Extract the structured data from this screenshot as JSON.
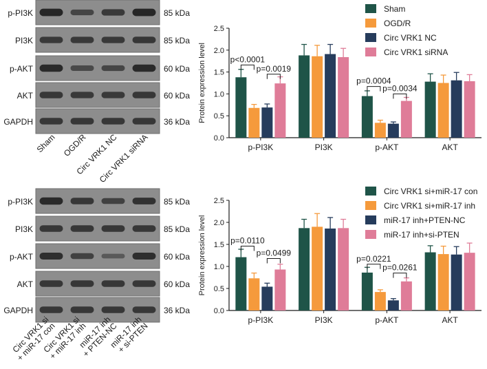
{
  "panels": [
    {
      "blot": {
        "rows": [
          {
            "name": "p-PI3K",
            "size": "85 kDa",
            "intensity": [
              0.95,
              0.55,
              0.7,
              0.95
            ]
          },
          {
            "name": "PI3K",
            "size": "85 kDa",
            "intensity": [
              0.7,
              0.7,
              0.7,
              0.75
            ]
          },
          {
            "name": "p-AKT",
            "size": "60 kDa",
            "intensity": [
              0.9,
              0.5,
              0.55,
              0.9
            ]
          },
          {
            "name": "AKT",
            "size": "60 kDa",
            "intensity": [
              0.75,
              0.7,
              0.7,
              0.75
            ]
          },
          {
            "name": "GAPDH",
            "size": "36 kDa",
            "intensity": [
              0.75,
              0.75,
              0.75,
              0.75
            ]
          }
        ],
        "lane_labels": [
          [
            "Sham"
          ],
          [
            "OGD/R"
          ],
          [
            "Circ VRK1 NC"
          ],
          [
            "Circ VRK1 siRNA"
          ]
        ]
      },
      "chart_data": {
        "type": "bar",
        "ylabel": "Protein expression level",
        "ylim": [
          0,
          2.5
        ],
        "yticks": [
          "0.0",
          "0.5",
          "1.0",
          "1.5",
          "2.0",
          "2.5"
        ],
        "categories": [
          "p-PI3K",
          "PI3K",
          "p-AKT",
          "AKT"
        ],
        "series": [
          {
            "name": "Sham",
            "color": "#1f5448",
            "values": [
              1.38,
              1.88,
              0.95,
              1.28
            ],
            "errors": [
              0.18,
              0.25,
              0.12,
              0.18
            ]
          },
          {
            "name": "OGD/R",
            "color": "#f59a3c",
            "values": [
              0.68,
              1.86,
              0.34,
              1.25
            ],
            "errors": [
              0.08,
              0.25,
              0.06,
              0.18
            ]
          },
          {
            "name": "Circ VRK1 NC",
            "color": "#263c5c",
            "values": [
              0.69,
              1.91,
              0.32,
              1.31
            ],
            "errors": [
              0.08,
              0.22,
              0.04,
              0.18
            ]
          },
          {
            "name": "Circ VRK1 siRNA",
            "color": "#df7c98",
            "values": [
              1.24,
              1.84,
              0.84,
              1.29
            ],
            "errors": [
              0.15,
              0.2,
              0.08,
              0.15
            ]
          }
        ],
        "significance": [
          {
            "category": 0,
            "from": 0,
            "to": 1,
            "label": "p<0.0001",
            "y": 1.66
          },
          {
            "category": 0,
            "from": 2,
            "to": 3,
            "label": "p=0.0019",
            "y": 1.45
          },
          {
            "category": 2,
            "from": 0,
            "to": 1,
            "label": "p=0.0004",
            "y": 1.17
          },
          {
            "category": 2,
            "from": 2,
            "to": 3,
            "label": "p=0.0034",
            "y": 1.0
          }
        ]
      }
    },
    {
      "blot": {
        "rows": [
          {
            "name": "p-PI3K",
            "size": "85 kDa",
            "intensity": [
              0.9,
              0.75,
              0.6,
              0.8
            ]
          },
          {
            "name": "PI3K",
            "size": "85 kDa",
            "intensity": [
              0.75,
              0.75,
              0.75,
              0.75
            ]
          },
          {
            "name": "p-AKT",
            "size": "60 kDa",
            "intensity": [
              0.85,
              0.6,
              0.3,
              0.85
            ]
          },
          {
            "name": "AKT",
            "size": "60 kDa",
            "intensity": [
              0.75,
              0.75,
              0.75,
              0.75
            ]
          },
          {
            "name": "GAPDH",
            "size": "36 kDa",
            "intensity": [
              0.75,
              0.75,
              0.75,
              0.75
            ]
          }
        ],
        "lane_labels": [
          [
            "Circ VRK1 si",
            "+ miR-17 con"
          ],
          [
            "Circ VRK1 si",
            "+ miR-17 inh"
          ],
          [
            "miR-17 inh",
            "+ PTEN-NC"
          ],
          [
            "miR-17 inh",
            "+ si-PTEN"
          ]
        ]
      },
      "chart_data": {
        "type": "bar",
        "ylabel": "Protein expression level",
        "ylim": [
          0,
          2.5
        ],
        "yticks": [
          "0.0",
          "0.5",
          "1.0",
          "1.5",
          "2.0",
          "2.5"
        ],
        "categories": [
          "p-PI3K",
          "PI3K",
          "p-AKT",
          "AKT"
        ],
        "series": [
          {
            "name": "Circ VRK1 si+miR-17 con",
            "color": "#1f5448",
            "values": [
              1.21,
              1.87,
              0.86,
              1.32
            ],
            "errors": [
              0.18,
              0.2,
              0.12,
              0.15
            ]
          },
          {
            "name": "Circ VRK1 si+miR-17 inh",
            "color": "#f59a3c",
            "values": [
              0.73,
              1.9,
              0.42,
              1.28
            ],
            "errors": [
              0.12,
              0.3,
              0.05,
              0.18
            ]
          },
          {
            "name": "miR-17 inh+PTEN-NC",
            "color": "#263c5c",
            "values": [
              0.54,
              1.86,
              0.23,
              1.27
            ],
            "errors": [
              0.08,
              0.25,
              0.04,
              0.18
            ]
          },
          {
            "name": "miR-17 inh+si-PTEN",
            "color": "#df7c98",
            "values": [
              0.93,
              1.87,
              0.66,
              1.31
            ],
            "errors": [
              0.12,
              0.2,
              0.08,
              0.22
            ]
          }
        ],
        "significance": [
          {
            "category": 0,
            "from": 0,
            "to": 1,
            "label": "p=0.0110",
            "y": 1.46
          },
          {
            "category": 0,
            "from": 2,
            "to": 3,
            "label": "p=0.0499",
            "y": 1.18
          },
          {
            "category": 2,
            "from": 0,
            "to": 1,
            "label": "p=0.0221",
            "y": 1.05
          },
          {
            "category": 2,
            "from": 2,
            "to": 3,
            "label": "p=0.0261",
            "y": 0.85
          }
        ]
      }
    }
  ]
}
